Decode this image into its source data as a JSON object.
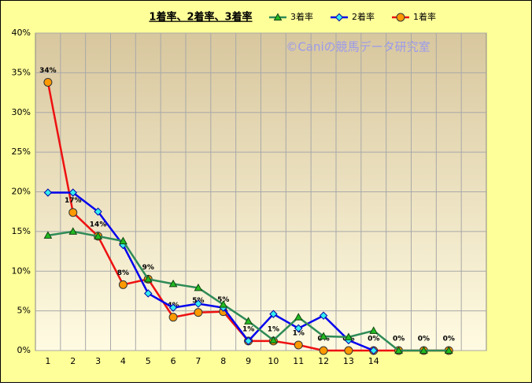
{
  "chart_data": {
    "type": "line",
    "title": "1着率、2着率、3着率",
    "annotation": "©Caniの競馬データ研究室",
    "categories": [
      "1",
      "2",
      "3",
      "4",
      "5",
      "6",
      "7",
      "8",
      "9",
      "10",
      "11",
      "12",
      "13",
      "14",
      null,
      null,
      null
    ],
    "series": [
      {
        "name": "3着率",
        "color": "#2e8b57",
        "marker_color": "#22bb22",
        "marker": "triangle",
        "values": [
          14.5,
          15.0,
          14.4,
          13.8,
          9.0,
          8.4,
          7.9,
          5.8,
          3.7,
          1.3,
          4.2,
          1.8,
          1.7,
          2.5,
          0,
          0,
          0
        ]
      },
      {
        "name": "2着率",
        "color": "#0000ee",
        "marker_color": "#33eeee",
        "marker": "diamond",
        "values": [
          19.9,
          19.9,
          17.5,
          13.3,
          7.2,
          5.4,
          5.9,
          5.4,
          1.2,
          4.6,
          2.8,
          4.4,
          1.3,
          0,
          null,
          null,
          null
        ]
      },
      {
        "name": "1着率",
        "color": "#ee1111",
        "marker_color": "#ff9900",
        "marker": "circle",
        "values": [
          33.8,
          17.4,
          14.4,
          8.3,
          9.0,
          4.2,
          4.8,
          4.9,
          1.2,
          1.2,
          0.7,
          0,
          0,
          0,
          0,
          0,
          0
        ],
        "value_labels": [
          "34%",
          "17%",
          "14%",
          "8%",
          "9%",
          "4%",
          "5%",
          "5%",
          "1%",
          "1%",
          "1%",
          "0%",
          "0%",
          "0%",
          "0%",
          "0%",
          "0%"
        ]
      }
    ],
    "ylim": [
      0,
      40
    ],
    "yticks": [
      {
        "value": 0,
        "label": "0%"
      },
      {
        "value": 5,
        "label": "5%"
      },
      {
        "value": 10,
        "label": "10%"
      },
      {
        "value": 15,
        "label": "15%"
      },
      {
        "value": 20,
        "label": "20%"
      },
      {
        "value": 25,
        "label": "25%"
      },
      {
        "value": 30,
        "label": "30%"
      },
      {
        "value": 35,
        "label": "35%"
      },
      {
        "value": 40,
        "label": "40%"
      }
    ],
    "grid": true,
    "legend": "top"
  }
}
